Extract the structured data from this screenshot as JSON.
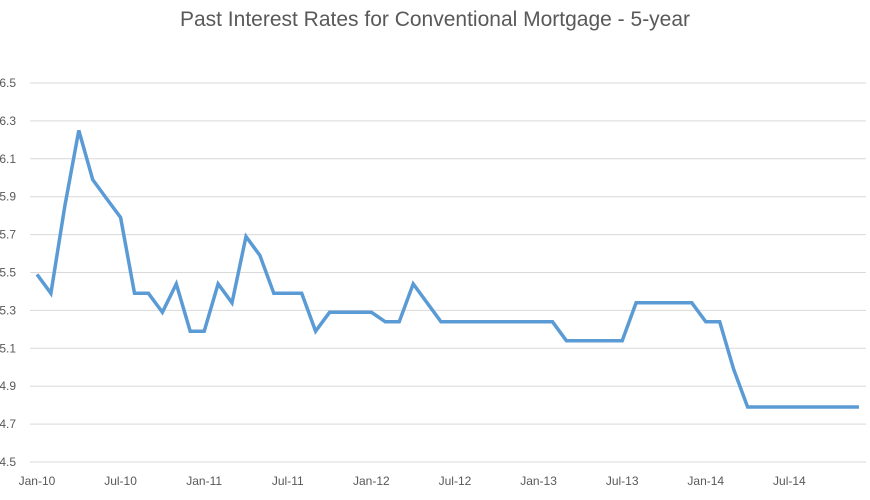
{
  "chart_data": {
    "type": "line",
    "title": "Past Interest Rates for Conventional Mortgage - 5-year",
    "xlabel": "",
    "ylabel": "",
    "ylim": [
      4.5,
      6.5
    ],
    "y_ticks": [
      "4.5",
      "4.7",
      "4.9",
      "5.1",
      "5.3",
      "5.5",
      "5.7",
      "5.9",
      "6.1",
      "6.3",
      "6.5"
    ],
    "x_ticks": [
      "Jan-10",
      "Jul-10",
      "Jan-11",
      "Jul-11",
      "Jan-12",
      "Jul-12",
      "Jan-13",
      "Jul-13",
      "Jan-14",
      "Jul-14"
    ],
    "grid": true,
    "legend": "none",
    "series_color": "#5b9bd5",
    "x": [
      "Jan-10",
      "Feb-10",
      "Mar-10",
      "Apr-10",
      "May-10",
      "Jun-10",
      "Jul-10",
      "Aug-10",
      "Sep-10",
      "Oct-10",
      "Nov-10",
      "Dec-10",
      "Jan-11",
      "Feb-11",
      "Mar-11",
      "Apr-11",
      "May-11",
      "Jun-11",
      "Jul-11",
      "Aug-11",
      "Sep-11",
      "Oct-11",
      "Nov-11",
      "Dec-11",
      "Jan-12",
      "Feb-12",
      "Mar-12",
      "Apr-12",
      "May-12",
      "Jun-12",
      "Jul-12",
      "Aug-12",
      "Sep-12",
      "Oct-12",
      "Nov-12",
      "Dec-12",
      "Jan-13",
      "Feb-13",
      "Mar-13",
      "Apr-13",
      "May-13",
      "Jun-13",
      "Jul-13",
      "Aug-13",
      "Sep-13",
      "Oct-13",
      "Nov-13",
      "Dec-13",
      "Jan-14",
      "Feb-14",
      "Mar-14",
      "Apr-14",
      "May-14",
      "Jun-14",
      "Jul-14",
      "Aug-14",
      "Sep-14",
      "Oct-14",
      "Nov-14",
      "Dec-14"
    ],
    "series": [
      {
        "values": [
          5.49,
          5.39,
          5.85,
          6.25,
          5.99,
          5.89,
          5.79,
          5.39,
          5.39,
          5.29,
          5.44,
          5.19,
          5.19,
          5.44,
          5.34,
          5.69,
          5.59,
          5.39,
          5.39,
          5.39,
          5.19,
          5.29,
          5.29,
          5.29,
          5.29,
          5.24,
          5.24,
          5.44,
          5.34,
          5.24,
          5.24,
          5.24,
          5.24,
          5.24,
          5.24,
          5.24,
          5.24,
          5.24,
          5.14,
          5.14,
          5.14,
          5.14,
          5.14,
          5.34,
          5.34,
          5.34,
          5.34,
          5.34,
          5.24,
          5.24,
          4.99,
          4.79,
          4.79,
          4.79,
          4.79,
          4.79,
          4.79,
          4.79,
          4.79,
          4.79
        ]
      }
    ]
  }
}
